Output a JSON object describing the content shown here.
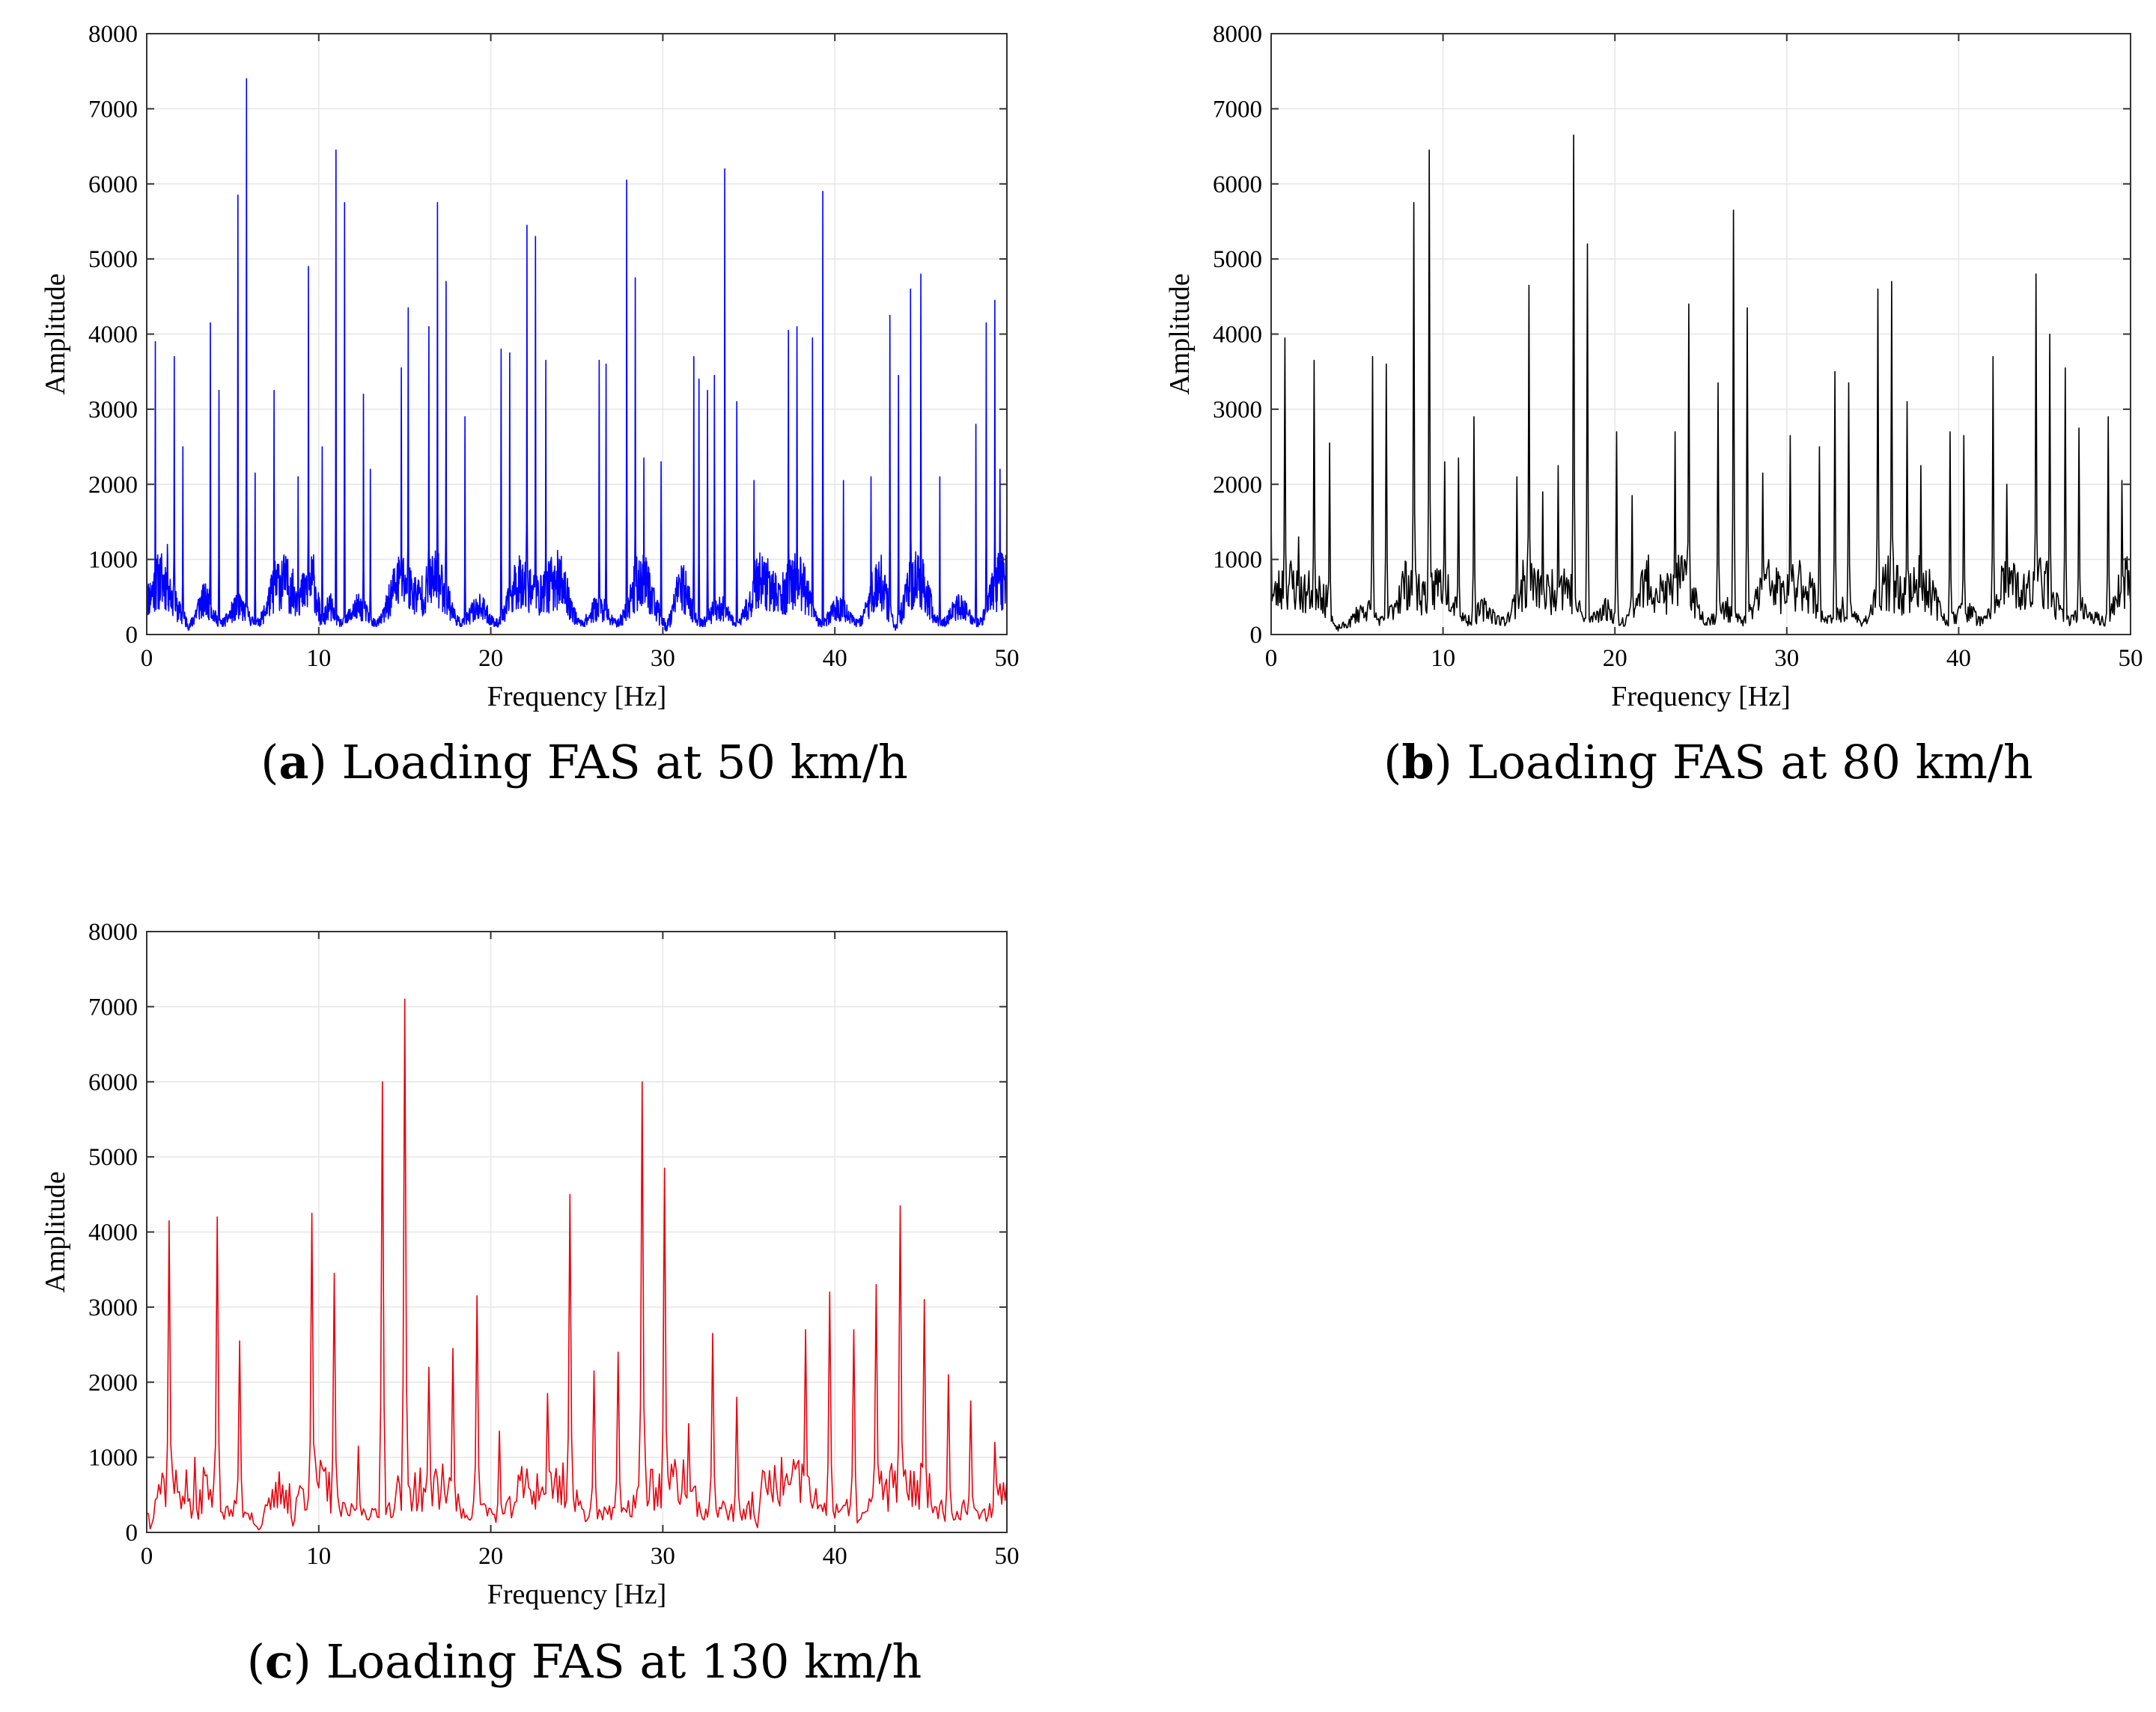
{
  "chart_data": [
    {
      "type": "line",
      "panel": "a",
      "caption_tag": "a",
      "caption_text": "Loading FAS at 50 km/h",
      "xlabel": "Frequency [Hz]",
      "ylabel": "Amplitude",
      "xlim": [
        0,
        50
      ],
      "ylim": [
        0,
        8000
      ],
      "xticks": [
        0,
        10,
        20,
        30,
        40,
        50
      ],
      "yticks": [
        0,
        1000,
        2000,
        3000,
        4000,
        5000,
        6000,
        7000,
        8000
      ],
      "grid": true,
      "color": "#0000ff",
      "seed": 11,
      "resolution": 0.02,
      "valleys": [
        [
          2.5,
          1.2
        ],
        [
          10.2,
          0.5
        ],
        [
          30.2,
          1.0
        ],
        [
          43.5,
          0.8
        ]
      ],
      "peaks": [
        [
          0.0,
          1700
        ],
        [
          0.5,
          3900
        ],
        [
          1.2,
          1200
        ],
        [
          1.6,
          3700
        ],
        [
          2.1,
          2500
        ],
        [
          3.7,
          4150
        ],
        [
          4.2,
          3250
        ],
        [
          5.3,
          5850
        ],
        [
          5.8,
          7400
        ],
        [
          6.3,
          2150
        ],
        [
          7.4,
          3250
        ],
        [
          8.8,
          2100
        ],
        [
          9.4,
          4900
        ],
        [
          10.2,
          2500
        ],
        [
          11.0,
          6450
        ],
        [
          11.5,
          5750
        ],
        [
          12.6,
          3200
        ],
        [
          13.0,
          2200
        ],
        [
          14.8,
          3550
        ],
        [
          15.2,
          4350
        ],
        [
          16.4,
          4100
        ],
        [
          16.9,
          5750
        ],
        [
          17.4,
          4700
        ],
        [
          18.5,
          2900
        ],
        [
          20.6,
          3800
        ],
        [
          21.1,
          3750
        ],
        [
          22.1,
          5450
        ],
        [
          22.6,
          5300
        ],
        [
          23.2,
          3650
        ],
        [
          26.3,
          3650
        ],
        [
          26.7,
          3600
        ],
        [
          27.9,
          6050
        ],
        [
          28.4,
          4750
        ],
        [
          28.9,
          2350
        ],
        [
          29.9,
          2300
        ],
        [
          31.8,
          3700
        ],
        [
          32.1,
          3400
        ],
        [
          32.6,
          3250
        ],
        [
          33.0,
          3450
        ],
        [
          33.6,
          6200
        ],
        [
          34.3,
          3100
        ],
        [
          35.3,
          2050
        ],
        [
          37.3,
          4050
        ],
        [
          37.8,
          4100
        ],
        [
          38.7,
          3950
        ],
        [
          39.3,
          5900
        ],
        [
          40.5,
          2050
        ],
        [
          42.1,
          2100
        ],
        [
          43.2,
          4250
        ],
        [
          43.7,
          3450
        ],
        [
          44.4,
          4600
        ],
        [
          45.0,
          4800
        ],
        [
          46.1,
          2100
        ],
        [
          48.2,
          2800
        ],
        [
          48.8,
          4150
        ],
        [
          49.3,
          4450
        ],
        [
          49.6,
          2200
        ],
        [
          50.0,
          2400
        ]
      ]
    },
    {
      "type": "line",
      "panel": "b",
      "caption_tag": "b",
      "caption_text": "Loading FAS at 80 km/h",
      "xlabel": "Frequency [Hz]",
      "ylabel": "Amplitude",
      "xlim": [
        0,
        50
      ],
      "ylim": [
        0,
        8000
      ],
      "xticks": [
        0,
        10,
        20,
        30,
        40,
        50
      ],
      "yticks": [
        0,
        1000,
        2000,
        3000,
        4000,
        5000,
        6000,
        7000,
        8000
      ],
      "grid": true,
      "color": "#000000",
      "seed": 23,
      "resolution": 0.05,
      "valleys": [
        [
          3.8,
          1.0
        ]
      ],
      "peaks": [
        [
          0.0,
          1600
        ],
        [
          0.8,
          3950
        ],
        [
          1.6,
          1300
        ],
        [
          2.5,
          3650
        ],
        [
          3.4,
          2550
        ],
        [
          5.9,
          3700
        ],
        [
          6.7,
          3600
        ],
        [
          8.3,
          5750
        ],
        [
          9.2,
          6450
        ],
        [
          10.1,
          2300
        ],
        [
          10.9,
          2350
        ],
        [
          11.8,
          2900
        ],
        [
          14.3,
          2100
        ],
        [
          15.0,
          4650
        ],
        [
          15.8,
          1900
        ],
        [
          16.7,
          2250
        ],
        [
          17.6,
          6650
        ],
        [
          18.4,
          5200
        ],
        [
          20.1,
          2700
        ],
        [
          21.0,
          1850
        ],
        [
          23.5,
          2700
        ],
        [
          24.3,
          4400
        ],
        [
          26.0,
          3350
        ],
        [
          26.9,
          5650
        ],
        [
          27.7,
          4350
        ],
        [
          28.6,
          2150
        ],
        [
          30.2,
          2650
        ],
        [
          31.9,
          2500
        ],
        [
          32.8,
          3500
        ],
        [
          33.6,
          3350
        ],
        [
          35.3,
          4600
        ],
        [
          36.1,
          4700
        ],
        [
          37.0,
          3100
        ],
        [
          37.8,
          2250
        ],
        [
          39.5,
          2700
        ],
        [
          40.3,
          2650
        ],
        [
          42.0,
          3700
        ],
        [
          42.8,
          2000
        ],
        [
          44.5,
          4800
        ],
        [
          45.3,
          4000
        ],
        [
          46.2,
          3550
        ],
        [
          47.0,
          2750
        ],
        [
          48.7,
          2900
        ],
        [
          49.5,
          2050
        ]
      ]
    },
    {
      "type": "line",
      "panel": "c",
      "caption_tag": "c",
      "caption_text": "Loading FAS at 130 km/h",
      "xlabel": "Frequency [Hz]",
      "ylabel": "Amplitude",
      "xlim": [
        0,
        50
      ],
      "ylim": [
        0,
        8000
      ],
      "xticks": [
        0,
        10,
        20,
        30,
        40,
        50
      ],
      "yticks": [
        0,
        1000,
        2000,
        3000,
        4000,
        5000,
        6000,
        7000,
        8000
      ],
      "grid": true,
      "color": "#e8000b",
      "seed": 37,
      "resolution": 0.1,
      "valleys": [
        [
          0.2,
          0.3
        ],
        [
          2.8,
          0.5
        ],
        [
          6.5,
          0.4
        ],
        [
          8.5,
          0.4
        ],
        [
          35.5,
          0.3
        ]
      ],
      "peaks": [
        [
          1.3,
          4150
        ],
        [
          2.8,
          1000
        ],
        [
          4.1,
          4200
        ],
        [
          5.4,
          2550
        ],
        [
          8.3,
          650
        ],
        [
          9.6,
          4250
        ],
        [
          10.9,
          3450
        ],
        [
          12.3,
          1150
        ],
        [
          13.7,
          6000
        ],
        [
          15.0,
          7100
        ],
        [
          16.4,
          2200
        ],
        [
          17.8,
          2450
        ],
        [
          19.2,
          3150
        ],
        [
          20.5,
          1350
        ],
        [
          23.3,
          1850
        ],
        [
          24.6,
          4500
        ],
        [
          26.0,
          2150
        ],
        [
          27.4,
          2400
        ],
        [
          28.8,
          6000
        ],
        [
          30.1,
          4850
        ],
        [
          31.5,
          1450
        ],
        [
          32.9,
          2650
        ],
        [
          34.3,
          1800
        ],
        [
          36.9,
          1000
        ],
        [
          38.3,
          2700
        ],
        [
          39.7,
          3200
        ],
        [
          41.1,
          2700
        ],
        [
          42.4,
          3300
        ],
        [
          43.8,
          4350
        ],
        [
          45.2,
          3100
        ],
        [
          46.6,
          2100
        ],
        [
          47.9,
          1750
        ],
        [
          49.3,
          1200
        ]
      ]
    }
  ]
}
